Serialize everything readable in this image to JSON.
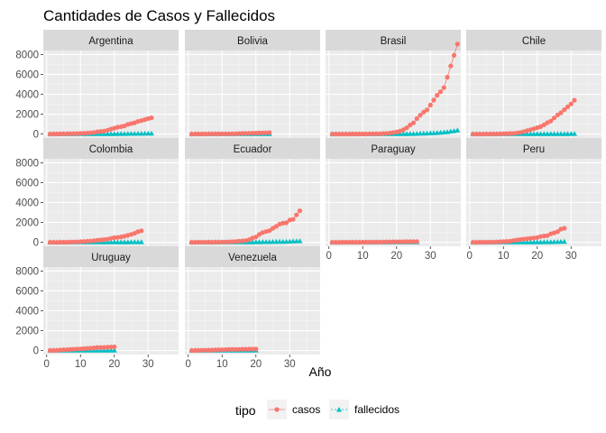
{
  "chart_data": {
    "type": "scatter",
    "title": "Cantidades de Casos y Fallecidos",
    "xlabel": "Año",
    "ylabel": "",
    "xlim": [
      -1,
      39
    ],
    "ylim": [
      -400,
      8400
    ],
    "x_ticks": [
      0,
      10,
      20,
      30
    ],
    "y_ticks": [
      0,
      2000,
      4000,
      6000,
      8000
    ],
    "grid": true,
    "legend": {
      "title": "tipo",
      "position": "bottom",
      "entries": [
        {
          "name": "casos",
          "color": "#F8766D",
          "shape": "circle"
        },
        {
          "name": "fallecidos",
          "color": "#00BFC4",
          "shape": "triangle"
        }
      ]
    },
    "facets": [
      {
        "name": "Argentina",
        "n": 31,
        "casos": [
          [
            1,
            2
          ],
          [
            2,
            8
          ],
          [
            3,
            12
          ],
          [
            4,
            17
          ],
          [
            5,
            19
          ],
          [
            6,
            31
          ],
          [
            7,
            34
          ],
          [
            8,
            45
          ],
          [
            9,
            56
          ],
          [
            10,
            65
          ],
          [
            11,
            79
          ],
          [
            12,
            97
          ],
          [
            13,
            128
          ],
          [
            14,
            158
          ],
          [
            15,
            225
          ],
          [
            16,
            266
          ],
          [
            17,
            301
          ],
          [
            18,
            387
          ],
          [
            19,
            502
          ],
          [
            20,
            589
          ],
          [
            21,
            690
          ],
          [
            22,
            745
          ],
          [
            23,
            820
          ],
          [
            24,
            966
          ],
          [
            25,
            1054
          ],
          [
            26,
            1133
          ],
          [
            27,
            1265
          ],
          [
            28,
            1353
          ],
          [
            29,
            1451
          ],
          [
            30,
            1554
          ],
          [
            31,
            1628
          ]
        ],
        "fallecidos": [
          [
            1,
            0
          ],
          [
            5,
            1
          ],
          [
            10,
            2
          ],
          [
            15,
            4
          ],
          [
            20,
            12
          ],
          [
            25,
            27
          ],
          [
            28,
            36
          ],
          [
            31,
            48
          ]
        ]
      },
      {
        "name": "Bolivia",
        "n": 24,
        "casos": [
          [
            1,
            2
          ],
          [
            4,
            10
          ],
          [
            8,
            15
          ],
          [
            12,
            20
          ],
          [
            16,
            60
          ],
          [
            20,
            100
          ],
          [
            22,
            120
          ],
          [
            24,
            140
          ]
        ],
        "fallecidos": [
          [
            1,
            0
          ],
          [
            12,
            0
          ],
          [
            18,
            3
          ],
          [
            24,
            10
          ]
        ]
      },
      {
        "name": "Brasil",
        "n": 38,
        "casos": [
          [
            1,
            1
          ],
          [
            5,
            2
          ],
          [
            10,
            8
          ],
          [
            15,
            25
          ],
          [
            18,
            98
          ],
          [
            20,
            200
          ],
          [
            21,
            291
          ],
          [
            22,
            428
          ],
          [
            23,
            621
          ],
          [
            24,
            904
          ],
          [
            25,
            1128
          ],
          [
            26,
            1546
          ],
          [
            27,
            1891
          ],
          [
            28,
            2201
          ],
          [
            29,
            2433
          ],
          [
            30,
            2915
          ],
          [
            31,
            3417
          ],
          [
            32,
            3904
          ],
          [
            33,
            4256
          ],
          [
            34,
            4661
          ],
          [
            35,
            5717
          ],
          [
            36,
            6836
          ],
          [
            37,
            7910
          ],
          [
            38,
            9056
          ]
        ],
        "fallecidos": [
          [
            1,
            0
          ],
          [
            20,
            0
          ],
          [
            25,
            18
          ],
          [
            30,
            77
          ],
          [
            33,
            136
          ],
          [
            35,
            201
          ],
          [
            37,
            299
          ],
          [
            38,
            359
          ]
        ]
      },
      {
        "name": "Chile",
        "n": 31,
        "casos": [
          [
            1,
            1
          ],
          [
            5,
            4
          ],
          [
            8,
            10
          ],
          [
            11,
            43
          ],
          [
            13,
            75
          ],
          [
            15,
            155
          ],
          [
            16,
            238
          ],
          [
            17,
            342
          ],
          [
            18,
            434
          ],
          [
            19,
            537
          ],
          [
            20,
            632
          ],
          [
            21,
            746
          ],
          [
            22,
            922
          ],
          [
            23,
            1142
          ],
          [
            24,
            1306
          ],
          [
            25,
            1610
          ],
          [
            26,
            1909
          ],
          [
            27,
            2139
          ],
          [
            28,
            2449
          ],
          [
            29,
            2738
          ],
          [
            30,
            3031
          ],
          [
            31,
            3404
          ]
        ],
        "fallecidos": [
          [
            1,
            0
          ],
          [
            20,
            0
          ],
          [
            25,
            4
          ],
          [
            28,
            8
          ],
          [
            31,
            18
          ]
        ]
      },
      {
        "name": "Colombia",
        "n": 28,
        "casos": [
          [
            1,
            1
          ],
          [
            3,
            3
          ],
          [
            6,
            9
          ],
          [
            9,
            45
          ],
          [
            12,
            102
          ],
          [
            14,
            158
          ],
          [
            16,
            235
          ],
          [
            18,
            306
          ],
          [
            20,
            470
          ],
          [
            21,
            491
          ],
          [
            22,
            539
          ],
          [
            23,
            608
          ],
          [
            24,
            702
          ],
          [
            25,
            798
          ],
          [
            26,
            906
          ],
          [
            27,
            1065
          ],
          [
            28,
            1161
          ]
        ],
        "fallecidos": [
          [
            1,
            0
          ],
          [
            15,
            0
          ],
          [
            20,
            4
          ],
          [
            25,
            14
          ],
          [
            28,
            19
          ]
        ]
      },
      {
        "name": "Ecuador",
        "n": 33,
        "casos": [
          [
            1,
            1
          ],
          [
            5,
            7
          ],
          [
            8,
            14
          ],
          [
            11,
            28
          ],
          [
            13,
            58
          ],
          [
            15,
            111
          ],
          [
            17,
            168
          ],
          [
            18,
            260
          ],
          [
            19,
            426
          ],
          [
            20,
            532
          ],
          [
            21,
            789
          ],
          [
            22,
            981
          ],
          [
            23,
            1082
          ],
          [
            24,
            1173
          ],
          [
            25,
            1403
          ],
          [
            26,
            1595
          ],
          [
            27,
            1823
          ],
          [
            28,
            1924
          ],
          [
            29,
            1962
          ],
          [
            30,
            2240
          ],
          [
            31,
            2302
          ],
          [
            32,
            2758
          ],
          [
            33,
            3163
          ]
        ],
        "fallecidos": [
          [
            1,
            0
          ],
          [
            15,
            2
          ],
          [
            20,
            14
          ],
          [
            25,
            34
          ],
          [
            28,
            58
          ],
          [
            30,
            75
          ],
          [
            33,
            120
          ]
        ]
      },
      {
        "name": "Paraguay",
        "n": 26,
        "casos": [
          [
            1,
            1
          ],
          [
            5,
            5
          ],
          [
            10,
            11
          ],
          [
            15,
            22
          ],
          [
            20,
            52
          ],
          [
            23,
            59
          ],
          [
            26,
            69
          ]
        ],
        "fallecidos": [
          [
            1,
            0
          ],
          [
            15,
            1
          ],
          [
            20,
            2
          ],
          [
            26,
            3
          ]
        ]
      },
      {
        "name": "Peru",
        "n": 28,
        "casos": [
          [
            1,
            1
          ],
          [
            5,
            9
          ],
          [
            8,
            38
          ],
          [
            10,
            71
          ],
          [
            12,
            117
          ],
          [
            14,
            234
          ],
          [
            16,
            318
          ],
          [
            18,
            395
          ],
          [
            20,
            480
          ],
          [
            21,
            580
          ],
          [
            22,
            635
          ],
          [
            23,
            671
          ],
          [
            24,
            852
          ],
          [
            25,
            950
          ],
          [
            26,
            1065
          ],
          [
            27,
            1323
          ],
          [
            28,
            1414
          ]
        ],
        "fallecidos": [
          [
            1,
            0
          ],
          [
            15,
            0
          ],
          [
            20,
            9
          ],
          [
            25,
            24
          ],
          [
            28,
            55
          ]
        ]
      },
      {
        "name": "Uruguay",
        "n": 20,
        "casos": [
          [
            1,
            4
          ],
          [
            2,
            8
          ],
          [
            3,
            29
          ],
          [
            4,
            50
          ],
          [
            5,
            79
          ],
          [
            6,
            94
          ],
          [
            7,
            110
          ],
          [
            8,
            135
          ],
          [
            9,
            158
          ],
          [
            10,
            162
          ],
          [
            11,
            189
          ],
          [
            12,
            217
          ],
          [
            13,
            238
          ],
          [
            14,
            274
          ],
          [
            15,
            304
          ],
          [
            16,
            310
          ],
          [
            17,
            320
          ],
          [
            18,
            338
          ],
          [
            19,
            350
          ],
          [
            20,
            369
          ]
        ],
        "fallecidos": [
          [
            1,
            0
          ],
          [
            10,
            0
          ],
          [
            15,
            1
          ],
          [
            20,
            4
          ]
        ]
      },
      {
        "name": "Venezuela",
        "n": 20,
        "casos": [
          [
            1,
            2
          ],
          [
            2,
            10
          ],
          [
            3,
            17
          ],
          [
            4,
            33
          ],
          [
            5,
            36
          ],
          [
            6,
            42
          ],
          [
            7,
            42
          ],
          [
            8,
            70
          ],
          [
            9,
            77
          ],
          [
            10,
            84
          ],
          [
            11,
            91
          ],
          [
            12,
            107
          ],
          [
            13,
            107
          ],
          [
            14,
            119
          ],
          [
            15,
            119
          ],
          [
            16,
            135
          ],
          [
            17,
            135
          ],
          [
            18,
            143
          ],
          [
            19,
            146
          ],
          [
            20,
            153
          ]
        ],
        "fallecidos": [
          [
            1,
            0
          ],
          [
            10,
            0
          ],
          [
            15,
            2
          ],
          [
            20,
            7
          ]
        ]
      }
    ]
  }
}
